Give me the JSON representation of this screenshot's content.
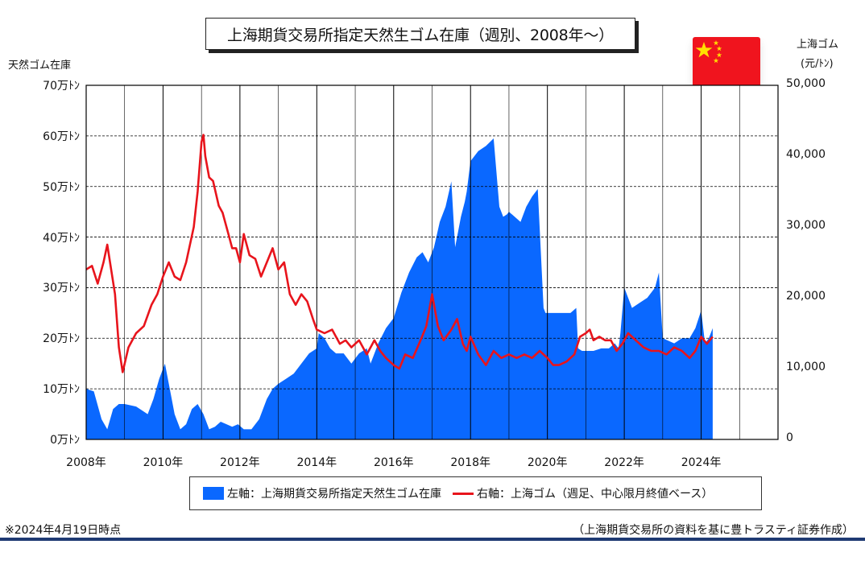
{
  "chart_data": {
    "type": "area",
    "title": "上海期貨交易所指定天然生ゴム在庫（週別、2008年〜）",
    "left_axis": {
      "title": "天然ゴム在庫",
      "ylim": [
        0,
        70
      ],
      "ticks": [
        0,
        10,
        20,
        30,
        40,
        50,
        60,
        70
      ],
      "tick_labels": [
        "0万ﾄﾝ",
        "10万ﾄﾝ",
        "20万ﾄﾝ",
        "30万ﾄﾝ",
        "40万ﾄﾝ",
        "50万ﾄﾝ",
        "60万ﾄﾝ",
        "70万ﾄﾝ"
      ]
    },
    "right_axis": {
      "title_line1": "上海ゴム",
      "title_line2": "(元/ﾄﾝ)",
      "ylim": [
        0,
        50000
      ],
      "ticks": [
        0,
        10000,
        20000,
        30000,
        40000,
        50000
      ],
      "tick_labels": [
        "0",
        "10,000",
        "20,000",
        "30,000",
        "40,000",
        "50,000"
      ]
    },
    "x_axis": {
      "xlim": [
        2008,
        2026
      ],
      "ticks": [
        2008,
        2010,
        2012,
        2014,
        2016,
        2018,
        2020,
        2022,
        2024
      ],
      "tick_labels": [
        "2008年",
        "2010年",
        "2012年",
        "2014年",
        "2016年",
        "2018年",
        "2020年",
        "2022年",
        "2024年"
      ],
      "gridlines_every": 1
    },
    "grid": "vertical lines each year, dashed horizontal lines at each left-axis tick",
    "series": [
      {
        "name": "左軸：上海期貨交易所指定天然生ゴム在庫",
        "axis": "left",
        "type": "area",
        "color": "#0a68ff",
        "x": [
          2008.0,
          2008.2,
          2008.4,
          2008.55,
          2008.7,
          2008.85,
          2009.0,
          2009.3,
          2009.6,
          2009.75,
          2009.9,
          2010.05,
          2010.2,
          2010.3,
          2010.45,
          2010.6,
          2010.75,
          2010.9,
          2011.05,
          2011.2,
          2011.35,
          2011.5,
          2011.65,
          2011.8,
          2011.95,
          2012.1,
          2012.3,
          2012.5,
          2012.7,
          2012.85,
          2013.0,
          2013.2,
          2013.4,
          2013.6,
          2013.8,
          2014.0,
          2014.05,
          2014.2,
          2014.35,
          2014.5,
          2014.7,
          2014.9,
          2015.1,
          2015.3,
          2015.4,
          2015.6,
          2015.8,
          2016.0,
          2016.2,
          2016.4,
          2016.6,
          2016.75,
          2016.9,
          2017.05,
          2017.2,
          2017.35,
          2017.5,
          2017.6,
          2017.75,
          2017.85,
          2017.9,
          2018.0,
          2018.2,
          2018.4,
          2018.6,
          2018.75,
          2018.85,
          2018.95,
          2019.0,
          2019.15,
          2019.3,
          2019.45,
          2019.6,
          2019.75,
          2019.9,
          2019.95,
          2020.0,
          2020.2,
          2020.4,
          2020.6,
          2020.75,
          2020.8,
          2020.9,
          2021.0,
          2021.2,
          2021.4,
          2021.6,
          2021.75,
          2021.85,
          2021.9,
          2022.0,
          2022.2,
          2022.4,
          2022.6,
          2022.8,
          2022.9,
          2023.0,
          2023.3,
          2023.5,
          2023.7,
          2023.85,
          2024.0,
          2024.1,
          2024.2,
          2024.3
        ],
        "values": [
          10,
          9.5,
          4,
          2,
          6,
          7,
          7,
          6.5,
          5,
          8,
          12,
          15,
          9,
          5,
          2,
          3,
          6,
          7,
          5,
          2,
          2.5,
          3.5,
          3,
          2.5,
          3,
          2,
          2,
          4,
          8,
          10,
          11,
          12,
          13,
          15,
          17,
          18,
          21,
          20,
          18,
          17,
          17,
          15,
          17,
          18,
          15,
          19,
          22,
          24,
          29,
          33,
          36,
          37,
          35,
          38,
          43,
          46,
          51,
          38,
          44,
          47,
          49,
          55,
          57,
          58,
          59.5,
          46,
          44,
          44.5,
          45,
          44,
          43,
          46,
          48,
          49.5,
          26,
          25,
          25,
          25,
          25,
          25,
          26,
          18,
          17.5,
          17.5,
          17.5,
          18,
          18,
          19,
          18,
          21,
          30,
          26,
          27,
          28,
          30,
          33,
          20,
          19,
          20,
          20,
          22,
          25.5,
          19,
          20,
          22
        ]
      },
      {
        "name": "右軸：上海ゴム（週足、中心限月終値ベース）",
        "axis": "right",
        "type": "line",
        "color": "#e8141c",
        "x": [
          2008.0,
          2008.15,
          2008.3,
          2008.45,
          2008.55,
          2008.65,
          2008.75,
          2008.85,
          2008.95,
          2009.1,
          2009.3,
          2009.5,
          2009.7,
          2009.85,
          2010.0,
          2010.15,
          2010.3,
          2010.45,
          2010.6,
          2010.8,
          2010.9,
          2011.0,
          2011.05,
          2011.1,
          2011.2,
          2011.3,
          2011.45,
          2011.55,
          2011.7,
          2011.8,
          2011.9,
          2012.0,
          2012.1,
          2012.25,
          2012.4,
          2012.55,
          2012.7,
          2012.85,
          2013.0,
          2013.15,
          2013.3,
          2013.45,
          2013.6,
          2013.75,
          2013.9,
          2014.0,
          2014.2,
          2014.4,
          2014.6,
          2014.75,
          2014.9,
          2015.1,
          2015.3,
          2015.5,
          2015.65,
          2015.8,
          2016.0,
          2016.15,
          2016.3,
          2016.5,
          2016.7,
          2016.85,
          2017.0,
          2017.15,
          2017.3,
          2017.5,
          2017.65,
          2017.8,
          2017.9,
          2018.0,
          2018.2,
          2018.4,
          2018.6,
          2018.8,
          2019.0,
          2019.2,
          2019.4,
          2019.6,
          2019.8,
          2020.0,
          2020.15,
          2020.3,
          2020.5,
          2020.7,
          2020.85,
          2021.0,
          2021.1,
          2021.2,
          2021.35,
          2021.5,
          2021.65,
          2021.8,
          2021.95,
          2022.1,
          2022.3,
          2022.5,
          2022.7,
          2022.9,
          2023.1,
          2023.3,
          2023.5,
          2023.7,
          2023.85,
          2024.0,
          2024.15,
          2024.3
        ],
        "values": [
          24000,
          24500,
          22000,
          25000,
          27500,
          24000,
          20500,
          13000,
          9500,
          13000,
          15000,
          16000,
          19000,
          20500,
          23000,
          25000,
          23000,
          22500,
          25000,
          30000,
          35000,
          42000,
          43000,
          40000,
          37000,
          36500,
          33000,
          32000,
          29000,
          27000,
          27000,
          25000,
          29000,
          26000,
          25500,
          23000,
          25000,
          27000,
          24000,
          25000,
          20500,
          19000,
          20500,
          19500,
          17000,
          15500,
          15000,
          15500,
          13500,
          14000,
          13000,
          14000,
          12000,
          14000,
          12500,
          11500,
          10500,
          10000,
          12000,
          11500,
          14000,
          16000,
          20500,
          16000,
          14000,
          15500,
          17000,
          13500,
          12500,
          14500,
          12000,
          10500,
          12500,
          11500,
          12000,
          11500,
          12000,
          11500,
          12500,
          11500,
          10500,
          10500,
          11000,
          12000,
          14500,
          15000,
          15500,
          14000,
          14500,
          14000,
          14000,
          12500,
          13500,
          15000,
          14000,
          13000,
          12500,
          12500,
          12000,
          13000,
          12500,
          11500,
          12500,
          14500,
          13500,
          14500
        ]
      }
    ]
  },
  "legend": {
    "area_label": "左軸：上海期貨交易所指定天然生ゴム在庫",
    "line_label": "右軸：上海ゴム（週足、中心限月終値ベース）"
  },
  "footer": {
    "date_note": "※2024年4月19日時点",
    "source": "（上海期貨交易所の資料を基に豊トラスティ証券作成）"
  },
  "flag": {
    "icon": "china-flag-icon",
    "bg": "#f0141e",
    "star": "#ffe000"
  }
}
